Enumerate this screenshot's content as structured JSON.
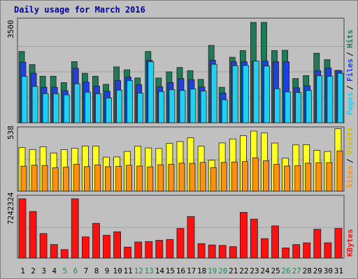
{
  "title": "Daily usage for March 2016",
  "colors": {
    "hits": "#1F7A56",
    "files": "#2040E0",
    "pages": "#20D0F0",
    "visits": "#FFFF20",
    "sites": "#FF9010",
    "kbytes": "#FF1010",
    "weekend_label": "#1E8A5A",
    "panel_bg": "#C0C0C0",
    "panel_border": "#404040"
  },
  "panels": {
    "hits": {
      "scale_label": "3500",
      "legend": [
        "Pages",
        "Files",
        "Hits"
      ]
    },
    "visits": {
      "scale_label": "538",
      "legend": [
        "Sites",
        "Visits"
      ]
    },
    "kbytes": {
      "scale_label": "7242324",
      "legend": [
        "KBytes"
      ]
    }
  },
  "chart_data": [
    {
      "type": "bar",
      "title": "Daily usage for March 2016",
      "categories": [
        "1",
        "2",
        "3",
        "4",
        "5",
        "6",
        "7",
        "8",
        "9",
        "10",
        "11",
        "12",
        "13",
        "14",
        "15",
        "16",
        "17",
        "18",
        "19",
        "20",
        "21",
        "22",
        "23",
        "24",
        "25",
        "26",
        "27",
        "28",
        "29",
        "30",
        "31"
      ],
      "weekend_days": [
        "5",
        "6",
        "12",
        "13",
        "19",
        "20",
        "26",
        "27"
      ],
      "ymax": 3500,
      "series": [
        {
          "name": "Hits",
          "values": [
            2450,
            2000,
            1600,
            1600,
            1380,
            2100,
            1700,
            1600,
            1320,
            1920,
            1820,
            1540,
            2450,
            1540,
            1750,
            1900,
            1790,
            1490,
            2660,
            1220,
            2250,
            2480,
            3450,
            3450,
            2480,
            2490,
            1520,
            1620,
            2390,
            2170,
            1800
          ]
        },
        {
          "name": "Files",
          "values": [
            2080,
            1700,
            1220,
            1220,
            1100,
            1870,
            1400,
            1260,
            1080,
            1450,
            1570,
            1310,
            2150,
            1240,
            1380,
            1520,
            1480,
            1230,
            2150,
            1020,
            2100,
            2100,
            2120,
            2120,
            2100,
            2100,
            1200,
            1270,
            1790,
            1880,
            1790
          ]
        },
        {
          "name": "Pages",
          "values": [
            1600,
            1250,
            1000,
            1000,
            960,
            1340,
            1050,
            1000,
            850,
            1120,
            1450,
            1020,
            2100,
            1070,
            1140,
            1110,
            1160,
            1090,
            2010,
            790,
            1960,
            1970,
            2120,
            1950,
            1170,
            1060,
            1040,
            1110,
            1620,
            1600,
            1700
          ]
        }
      ]
    },
    {
      "type": "bar",
      "ymax": 538,
      "series": [
        {
          "name": "Visits",
          "values": [
            374,
            357,
            380,
            327,
            355,
            368,
            387,
            385,
            291,
            293,
            340,
            386,
            370,
            366,
            409,
            425,
            457,
            385,
            265,
            413,
            447,
            475,
            514,
            498,
            412,
            282,
            396,
            398,
            350,
            340,
            535
          ]
        },
        {
          "name": "Sites",
          "values": [
            214,
            222,
            220,
            200,
            205,
            231,
            210,
            225,
            209,
            212,
            222,
            215,
            208,
            226,
            230,
            240,
            238,
            246,
            202,
            246,
            250,
            254,
            285,
            260,
            230,
            215,
            218,
            240,
            244,
            244,
            345
          ]
        }
      ]
    },
    {
      "type": "bar",
      "ymax": 7242324,
      "series": [
        {
          "name": "KBytes",
          "values": [
            7000000,
            5500000,
            2900000,
            1600000,
            1000000,
            7000000,
            2500000,
            4100000,
            2700000,
            3100000,
            1300000,
            1900000,
            1950000,
            2100000,
            2200000,
            3500000,
            4900000,
            1700000,
            1550000,
            1500000,
            1350000,
            5400000,
            4600000,
            2300000,
            3800000,
            1200000,
            1600000,
            1800000,
            3400000,
            1800000,
            3500000
          ]
        }
      ]
    }
  ]
}
